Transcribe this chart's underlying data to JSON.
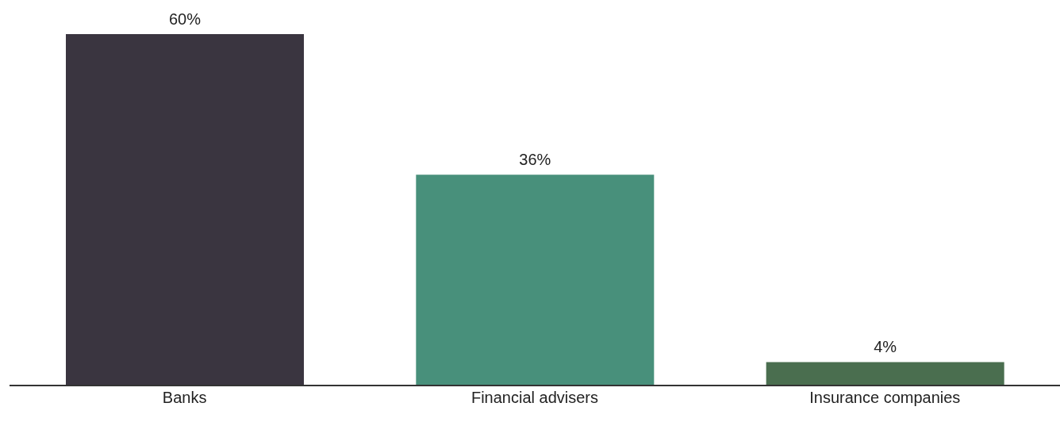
{
  "chart_data": {
    "type": "bar",
    "categories": [
      "Banks",
      "Financial advisers",
      "Insurance companies"
    ],
    "values": [
      60,
      36,
      4
    ],
    "colors": [
      "#3a3540",
      "#48907b",
      "#4a6e4f"
    ],
    "value_labels": [
      "60%",
      "36%",
      "4%"
    ]
  }
}
